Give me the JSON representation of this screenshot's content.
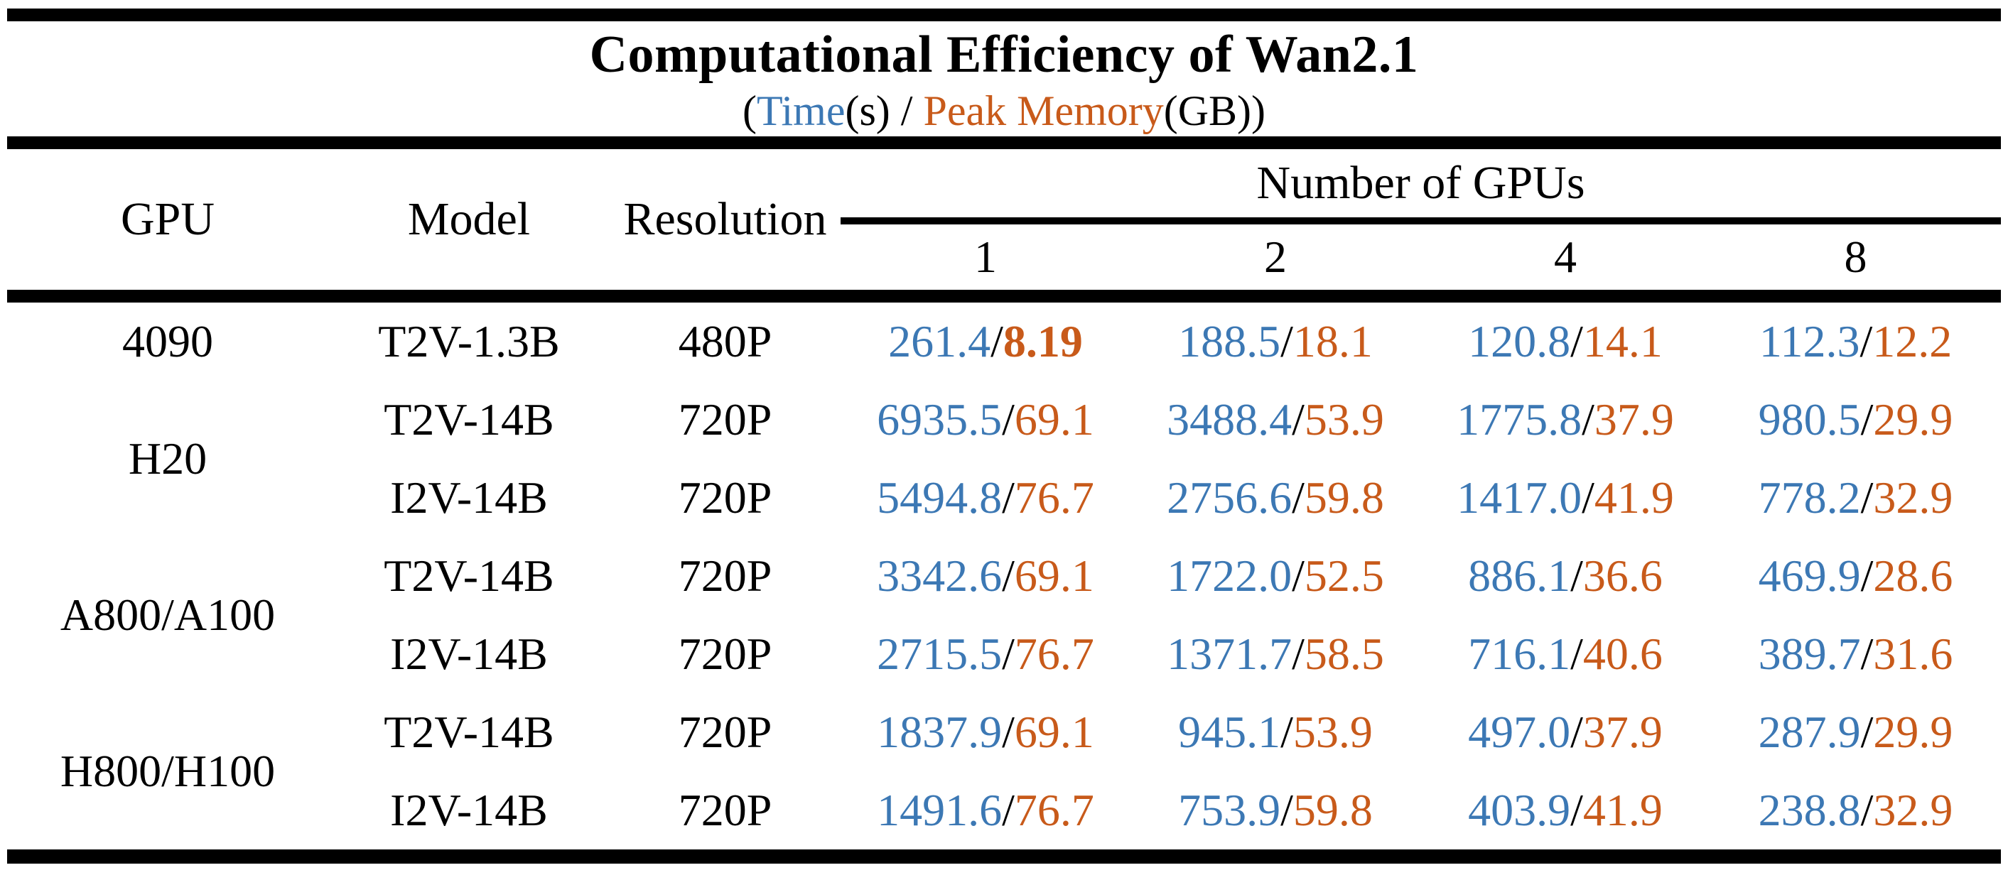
{
  "title": "Computational Efficiency of Wan2.1",
  "subtitle": {
    "open": "(",
    "time_label": "Time",
    "time_unit": "(s)",
    "separator": " / ",
    "memory_label": "Peak Memory",
    "memory_unit": "(GB))"
  },
  "symbols": {
    "slash": "/"
  },
  "colors": {
    "time": "#3C78B4",
    "memory": "#C85A1A",
    "text": "#000000",
    "background": "#ffffff"
  },
  "header": {
    "gpu": "GPU",
    "model": "Model",
    "resolution": "Resolution",
    "group": "Number of GPUs",
    "gpu_counts": [
      "1",
      "2",
      "4",
      "8"
    ]
  },
  "chart_data": {
    "type": "table",
    "title": "Computational Efficiency of Wan2.1",
    "subtitle": "(Time(s) / Peak Memory(GB))",
    "value_format": "Time(s) / Peak Memory(GB)",
    "columns": [
      "GPU",
      "Model",
      "Resolution",
      "1",
      "2",
      "4",
      "8"
    ],
    "column_group": {
      "label": "Number of GPUs",
      "columns": [
        "1",
        "2",
        "4",
        "8"
      ]
    },
    "legend": {
      "time_color": "#3C78B4",
      "memory_color": "#C85A1A"
    },
    "groups": [
      {
        "gpu": "4090",
        "rows": [
          {
            "model": "T2V-1.3B",
            "resolution": "480P",
            "cells": [
              {
                "time": "261.4",
                "mem": "8.19",
                "mem_bold": true
              },
              {
                "time": "188.5",
                "mem": "18.1"
              },
              {
                "time": "120.8",
                "mem": "14.1"
              },
              {
                "time": "112.3",
                "mem": "12.2"
              }
            ]
          }
        ]
      },
      {
        "gpu": "H20",
        "rows": [
          {
            "model": "T2V-14B",
            "resolution": "720P",
            "cells": [
              {
                "time": "6935.5",
                "mem": "69.1"
              },
              {
                "time": "3488.4",
                "mem": "53.9"
              },
              {
                "time": "1775.8",
                "mem": "37.9"
              },
              {
                "time": "980.5",
                "mem": "29.9"
              }
            ]
          },
          {
            "model": "I2V-14B",
            "resolution": "720P",
            "cells": [
              {
                "time": "5494.8",
                "mem": "76.7"
              },
              {
                "time": "2756.6",
                "mem": "59.8"
              },
              {
                "time": "1417.0",
                "mem": "41.9"
              },
              {
                "time": "778.2",
                "mem": "32.9"
              }
            ]
          }
        ]
      },
      {
        "gpu": "A800/A100",
        "rows": [
          {
            "model": "T2V-14B",
            "resolution": "720P",
            "cells": [
              {
                "time": "3342.6",
                "mem": "69.1"
              },
              {
                "time": "1722.0",
                "mem": "52.5"
              },
              {
                "time": "886.1",
                "mem": "36.6"
              },
              {
                "time": "469.9",
                "mem": "28.6"
              }
            ]
          },
          {
            "model": "I2V-14B",
            "resolution": "720P",
            "cells": [
              {
                "time": "2715.5",
                "mem": "76.7"
              },
              {
                "time": "1371.7",
                "mem": "58.5"
              },
              {
                "time": "716.1",
                "mem": "40.6"
              },
              {
                "time": "389.7",
                "mem": "31.6"
              }
            ]
          }
        ]
      },
      {
        "gpu": "H800/H100",
        "rows": [
          {
            "model": "T2V-14B",
            "resolution": "720P",
            "cells": [
              {
                "time": "1837.9",
                "mem": "69.1"
              },
              {
                "time": "945.1",
                "mem": "53.9"
              },
              {
                "time": "497.0",
                "mem": "37.9"
              },
              {
                "time": "287.9",
                "mem": "29.9"
              }
            ]
          },
          {
            "model": "I2V-14B",
            "resolution": "720P",
            "cells": [
              {
                "time": "1491.6",
                "mem": "76.7"
              },
              {
                "time": "753.9",
                "mem": "59.8"
              },
              {
                "time": "403.9",
                "mem": "41.9"
              },
              {
                "time": "238.8",
                "mem": "32.9"
              }
            ]
          }
        ]
      }
    ]
  }
}
